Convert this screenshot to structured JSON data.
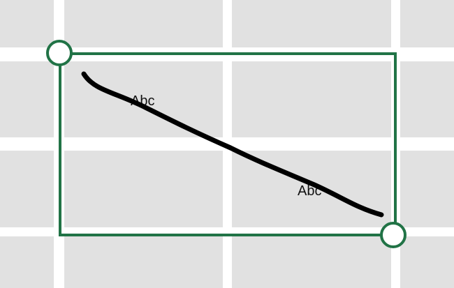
{
  "labels": [
    "Abc",
    "Abc"
  ],
  "colors": {
    "cell": "#e1e1e1",
    "gridline": "#ffffff",
    "selection": "#217346",
    "ink": "#000000"
  },
  "icons": [
    "selection-handle-top-left",
    "selection-handle-bottom-right"
  ]
}
